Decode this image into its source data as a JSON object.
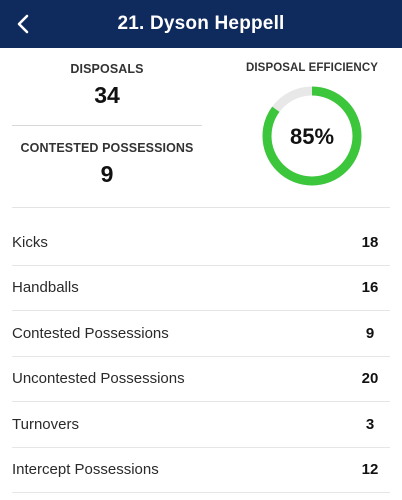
{
  "header": {
    "title": "21. Dyson Heppell",
    "back_icon": "chevron-left-icon",
    "background": "#0f2a5c"
  },
  "summary": {
    "disposals_label": "DISPOSALS",
    "disposals_value": "34",
    "contested_label": "CONTESTED POSSESSIONS",
    "contested_value": "9",
    "efficiency_label": "DISPOSAL EFFICIENCY",
    "efficiency_text": "85%",
    "efficiency_fraction": 0.85,
    "efficiency_color": "#3cc63c",
    "efficiency_track_color": "#e8e8e8"
  },
  "stats": [
    {
      "label": "Kicks",
      "value": "18"
    },
    {
      "label": "Handballs",
      "value": "16"
    },
    {
      "label": "Contested Possessions",
      "value": "9"
    },
    {
      "label": "Uncontested Possessions",
      "value": "20"
    },
    {
      "label": "Turnovers",
      "value": "3"
    },
    {
      "label": "Intercept Possessions",
      "value": "12"
    }
  ]
}
